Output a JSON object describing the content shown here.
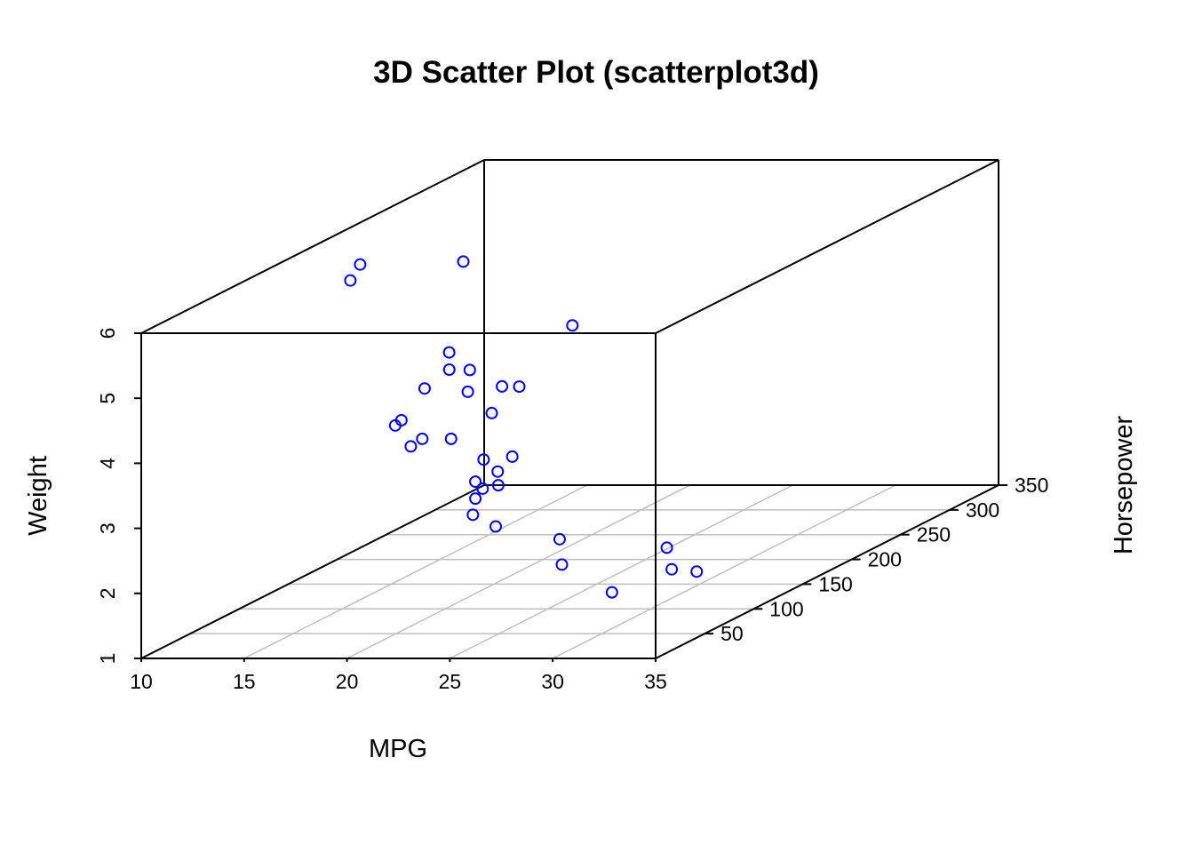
{
  "chart_data": {
    "type": "scatter",
    "title": "3D Scatter Plot (scatterplot3d)",
    "xlabel": "MPG",
    "ylabel": "Horsepower",
    "zlabel": "Weight",
    "xlim": [
      10,
      35
    ],
    "ylim": [
      0,
      350
    ],
    "zlim": [
      1,
      6
    ],
    "x_ticks": [
      10,
      15,
      20,
      25,
      30,
      35
    ],
    "y_ticks": [
      50,
      100,
      150,
      200,
      250,
      300,
      350
    ],
    "z_ticks": [
      1,
      2,
      3,
      4,
      5,
      6
    ],
    "grid": true,
    "point_color": "#0000ff",
    "points": [
      {
        "x": 10.4,
        "y": 205,
        "z": 5.25
      },
      {
        "x": 10.4,
        "y": 215,
        "z": 5.42
      },
      {
        "x": 14.7,
        "y": 230,
        "z": 5.35
      },
      {
        "x": 13.3,
        "y": 245,
        "z": 3.84
      },
      {
        "x": 14.3,
        "y": 245,
        "z": 3.57
      },
      {
        "x": 15.0,
        "y": 335,
        "z": 3.57
      },
      {
        "x": 15.2,
        "y": 180,
        "z": 3.78
      },
      {
        "x": 15.2,
        "y": 150,
        "z": 3.44
      },
      {
        "x": 15.5,
        "y": 150,
        "z": 3.52
      },
      {
        "x": 15.8,
        "y": 264,
        "z": 3.17
      },
      {
        "x": 16.4,
        "y": 180,
        "z": 4.07
      },
      {
        "x": 17.3,
        "y": 180,
        "z": 3.73
      },
      {
        "x": 17.8,
        "y": 123,
        "z": 3.44
      },
      {
        "x": 18.1,
        "y": 105,
        "z": 3.46
      },
      {
        "x": 18.7,
        "y": 175,
        "z": 3.44
      },
      {
        "x": 19.2,
        "y": 123,
        "z": 3.44
      },
      {
        "x": 19.2,
        "y": 175,
        "z": 3.85
      },
      {
        "x": 19.7,
        "y": 175,
        "z": 2.77
      },
      {
        "x": 21.0,
        "y": 110,
        "z": 2.62
      },
      {
        "x": 21.0,
        "y": 110,
        "z": 2.88
      },
      {
        "x": 21.4,
        "y": 110,
        "z": 3.22
      },
      {
        "x": 21.4,
        "y": 109,
        "z": 2.78
      },
      {
        "x": 21.5,
        "y": 97,
        "z": 2.47
      },
      {
        "x": 22.8,
        "y": 93,
        "z": 2.32
      },
      {
        "x": 22.8,
        "y": 95,
        "z": 3.15
      },
      {
        "x": 24.4,
        "y": 62,
        "z": 3.19
      },
      {
        "x": 26.0,
        "y": 91,
        "z": 2.14
      },
      {
        "x": 27.3,
        "y": 66,
        "z": 1.94
      },
      {
        "x": 30.4,
        "y": 52,
        "z": 1.62
      },
      {
        "x": 30.4,
        "y": 113,
        "z": 1.51
      },
      {
        "x": 32.4,
        "y": 66,
        "z": 2.2
      },
      {
        "x": 33.9,
        "y": 65,
        "z": 1.84
      }
    ]
  }
}
